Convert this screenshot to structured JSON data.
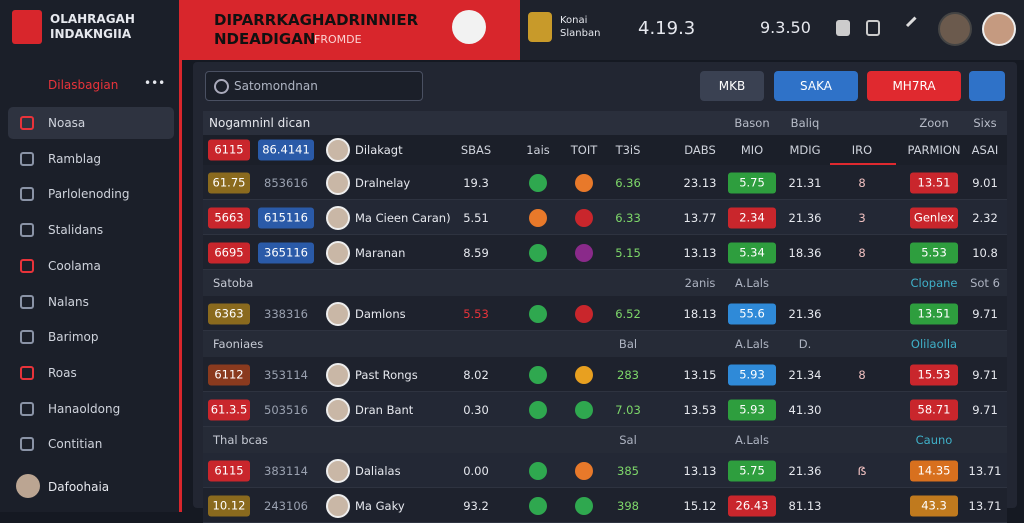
{
  "sidebar": {
    "logo": [
      "OLAHRAGAH",
      "INDAKNGIIA"
    ],
    "heading": "Dilasbagian",
    "more": "•••",
    "items": [
      "Noasa",
      "Ramblag",
      "Parlolenoding",
      "Stalidans",
      "Coolama",
      "Nalans",
      "Barimop",
      "Roas",
      "Hanaoldong",
      "Contitian"
    ],
    "active": 0,
    "user": "Dafoohaia"
  },
  "header": {
    "title": "DIPARRKAGHADRINNIER",
    "subtitle": "NDEADIGAN",
    "tag": "FROMDE",
    "team": [
      "Konai",
      "Slanban"
    ],
    "score": "4.19.3",
    "time": "9.3.50"
  },
  "toolbar": {
    "search": "Satomondnan",
    "buttons": [
      "MKB",
      "SAKA",
      "MH7RA"
    ]
  },
  "table": {
    "title": {
      "label": "Nogamninl dican",
      "b1": "Bason",
      "v5": "Baliq",
      "b2": "Zoon",
      "v7": "Sixs"
    },
    "columns": {
      "o1": "6115",
      "o2": "86.4141",
      "name": "Dilakagt",
      "v1": "SBAS",
      "d1": "1ais",
      "d2": "TOIT",
      "v2": "T3iS",
      "v3": "DABS",
      "b1": "MIO",
      "v5": "MDIG",
      "f": "IRO",
      "b2": "PARMION",
      "v7": "ASAI"
    },
    "rows": [
      {
        "o1": "61.75",
        "o1c": "#8a6a1e",
        "o2": "853616",
        "name": "Dralnelay",
        "v1": "19.3",
        "d1": "#2fa84f",
        "d2": "#e8792a",
        "v2": "6.36",
        "v3": "23.13",
        "b1": "5.75",
        "b1c": "#2e9e3e",
        "v5": "21.31",
        "f": "8",
        "b2": "13.51",
        "b2c": "#c9262c",
        "v7": "9.01"
      },
      {
        "o1": "5663",
        "o1c": "#c9262c",
        "o2": "615116",
        "o2c": "#2a5aa8",
        "name": "Ma Cieen Caran)",
        "v1": "5.51",
        "d1": "#e8792a",
        "d2": "#c9262c",
        "v2": "6.33",
        "v3": "13.77",
        "b1": "2.34",
        "b1c": "#c9262c",
        "v5": "21.36",
        "f": "3",
        "b2": "Genlex",
        "b2c": "#c9262c",
        "v7": "2.32"
      },
      {
        "o1": "6695",
        "o1c": "#c9262c",
        "o2": "365116",
        "o2c": "#2a5aa8",
        "name": "Maranan",
        "v1": "8.59",
        "d1": "#2fa84f",
        "d2": "#8a2a8a",
        "v2": "5.15",
        "v3": "13.13",
        "b1": "5.34",
        "b1c": "#2e9e3e",
        "v5": "18.36",
        "f": "8",
        "b2": "5.53",
        "b2c": "#2e9e3e",
        "v7": "10.8"
      },
      {
        "section": true,
        "label": "Satoba",
        "v3": "2anis",
        "b1": "A.Lals",
        "b2": "Clopane",
        "v7": "Sot 6"
      },
      {
        "o1": "6363",
        "o1c": "#8a6a1e",
        "o2": "338316",
        "name": "Damlons",
        "v1": "5.53",
        "v1c": "#e8333a",
        "d1": "#2fa84f",
        "d2": "#c9262c",
        "v2": "6.52",
        "v3": "18.13",
        "b1": "55.6",
        "b1c": "#2f8ad8",
        "v5": "21.36",
        "b2": "13.51",
        "b2c": "#2e9e3e",
        "v7": "9.71"
      },
      {
        "section": true,
        "label": "Faoniaes",
        "v2": "Bal",
        "b1": "A.Lals",
        "v5": "D.",
        "b2": "Olilaolla"
      },
      {
        "o1": "6112",
        "o1c": "#8a3a1e",
        "o2": "353114",
        "name": "Past Rongs",
        "v1": "8.02",
        "d1": "#2fa84f",
        "d2": "#e8a020",
        "v2": "283",
        "v3": "13.15",
        "b1": "5.93",
        "b1c": "#2f8ad8",
        "v5": "21.34",
        "f": "8",
        "b2": "15.53",
        "b2c": "#c9262c",
        "v7": "9.71"
      },
      {
        "o1": "61.3.5",
        "o1c": "#c9262c",
        "o2": "503516",
        "name": "Dran Bant",
        "v1": "0.30",
        "d1": "#2fa84f",
        "d2": "#2fa84f",
        "v2": "7.03",
        "v3": "13.53",
        "b1": "5.93",
        "b1c": "#2e9e3e",
        "v5": "41.30",
        "b2": "58.71",
        "b2c": "#c9262c",
        "v7": "9.71"
      },
      {
        "section": true,
        "label": "Thal bcas",
        "v2": "Sal",
        "b1": "A.Lals",
        "b2": "Cauno"
      },
      {
        "o1": "6115",
        "o1c": "#c9262c",
        "o2": "383114",
        "name": "Dalialas",
        "v1": "0.00",
        "d1": "#2fa84f",
        "d2": "#e8792a",
        "v2": "385",
        "v3": "13.13",
        "b1": "5.75",
        "b1c": "#2e9e3e",
        "v5": "21.36",
        "f": "ẞ",
        "b2": "14.35",
        "b2c": "#d8701e",
        "v7": "13.71"
      },
      {
        "o1": "10.12",
        "o1c": "#8a6a1e",
        "o2": "243106",
        "name": "Ma Gaky",
        "v1": "93.2",
        "d1": "#2fa84f",
        "d2": "#2fa84f",
        "v2": "398",
        "v3": "15.12",
        "b1": "26.43",
        "b1c": "#c9262c",
        "v5": "81.13",
        "b2": "43.3",
        "b2c": "#c07a1e",
        "v7": "13.71"
      }
    ]
  }
}
